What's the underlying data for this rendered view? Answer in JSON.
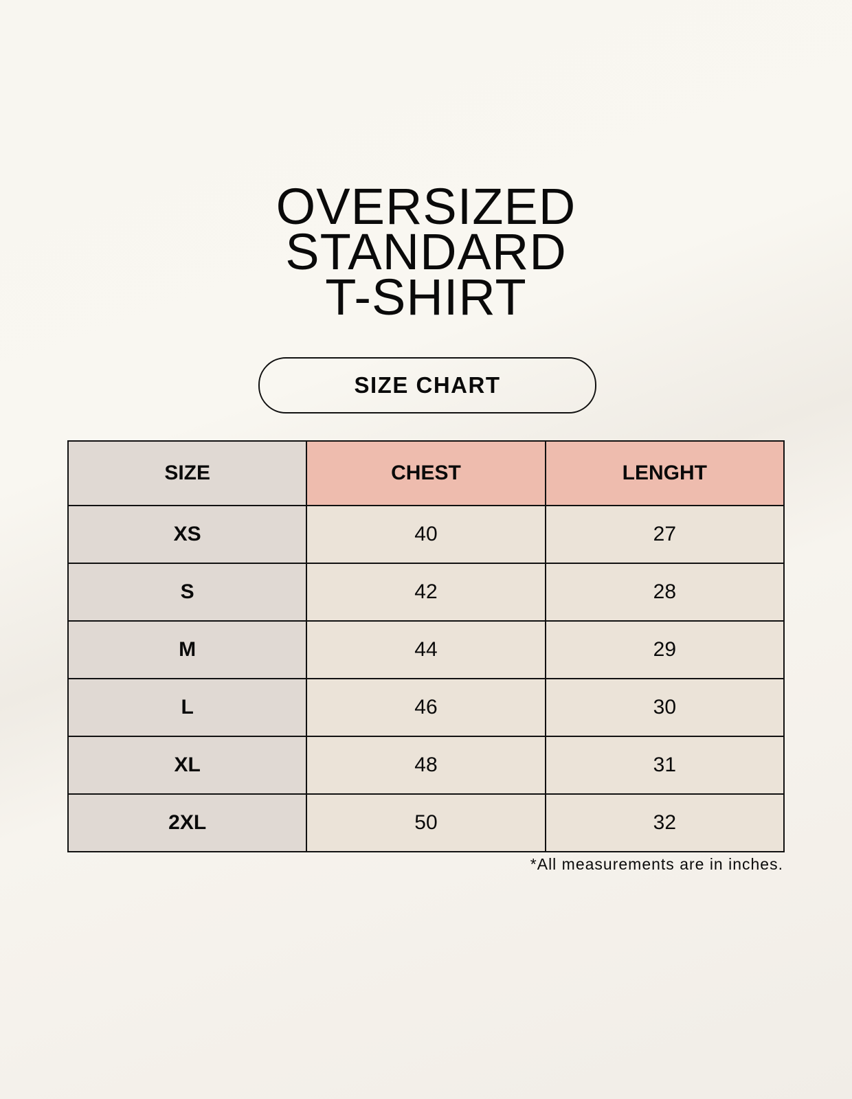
{
  "title": {
    "line1": "OVERSIZED",
    "line2": "STANDARD",
    "line3": "T-SHIRT"
  },
  "badge": "SIZE CHART",
  "table": {
    "headers": [
      "SIZE",
      "CHEST",
      "LENGHT"
    ],
    "rows": [
      [
        "XS",
        "40",
        "27"
      ],
      [
        "S",
        "42",
        "28"
      ],
      [
        "M",
        "44",
        "29"
      ],
      [
        "L",
        "46",
        "30"
      ],
      [
        "XL",
        "48",
        "31"
      ],
      [
        "2XL",
        "50",
        "32"
      ]
    ]
  },
  "footnote": "*All measurements are in inches.",
  "colors": {
    "size_column": "#e0d9d3",
    "header_accent": "#eebcae",
    "cell": "#ebe3d8"
  }
}
